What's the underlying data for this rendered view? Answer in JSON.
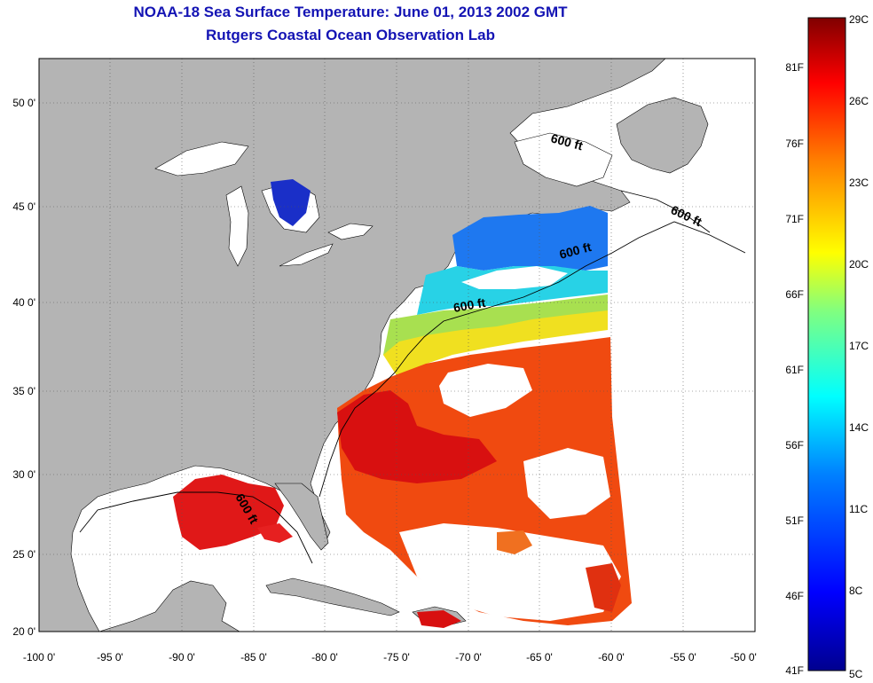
{
  "header": {
    "title": "NOAA-18 Sea Surface Temperature:  June 01, 2013 2002 GMT",
    "subtitle": "Rutgers Coastal Ocean Observation Lab"
  },
  "map": {
    "lon_range": [
      -100,
      -50
    ],
    "lat_range": [
      20,
      52.5
    ],
    "x_ticks": [
      "-100 0'",
      "-95 0'",
      "-90 0'",
      "-85 0'",
      "-80 0'",
      "-75 0'",
      "-70 0'",
      "-65 0'",
      "-60 0'",
      "-55 0'",
      "-50 0'"
    ],
    "y_ticks": [
      "20 0'",
      "25 0'",
      "30 0'",
      "35 0'",
      "40 0'",
      "45 0'",
      "50 0'"
    ],
    "contour_labels": [
      "600 ft",
      "600 ft",
      "600 ft",
      "600 ft",
      "600 ft"
    ],
    "land_color": "#b4b4b4",
    "no_data_color": "#ffffff"
  },
  "colorbar": {
    "celsius_labels": [
      "29C",
      "26C",
      "23C",
      "20C",
      "17C",
      "14C",
      "11C",
      "8C",
      "5C"
    ],
    "fahrenheit_labels": [
      "81F",
      "76F",
      "71F",
      "66F",
      "61F",
      "56F",
      "51F",
      "46F",
      "41F"
    ],
    "range_c": [
      5,
      29
    ],
    "colormap": [
      "#00008f",
      "#0000ff",
      "#0080ff",
      "#00ffff",
      "#80ff80",
      "#ffff00",
      "#ff8000",
      "#ff0000",
      "#800000"
    ]
  }
}
